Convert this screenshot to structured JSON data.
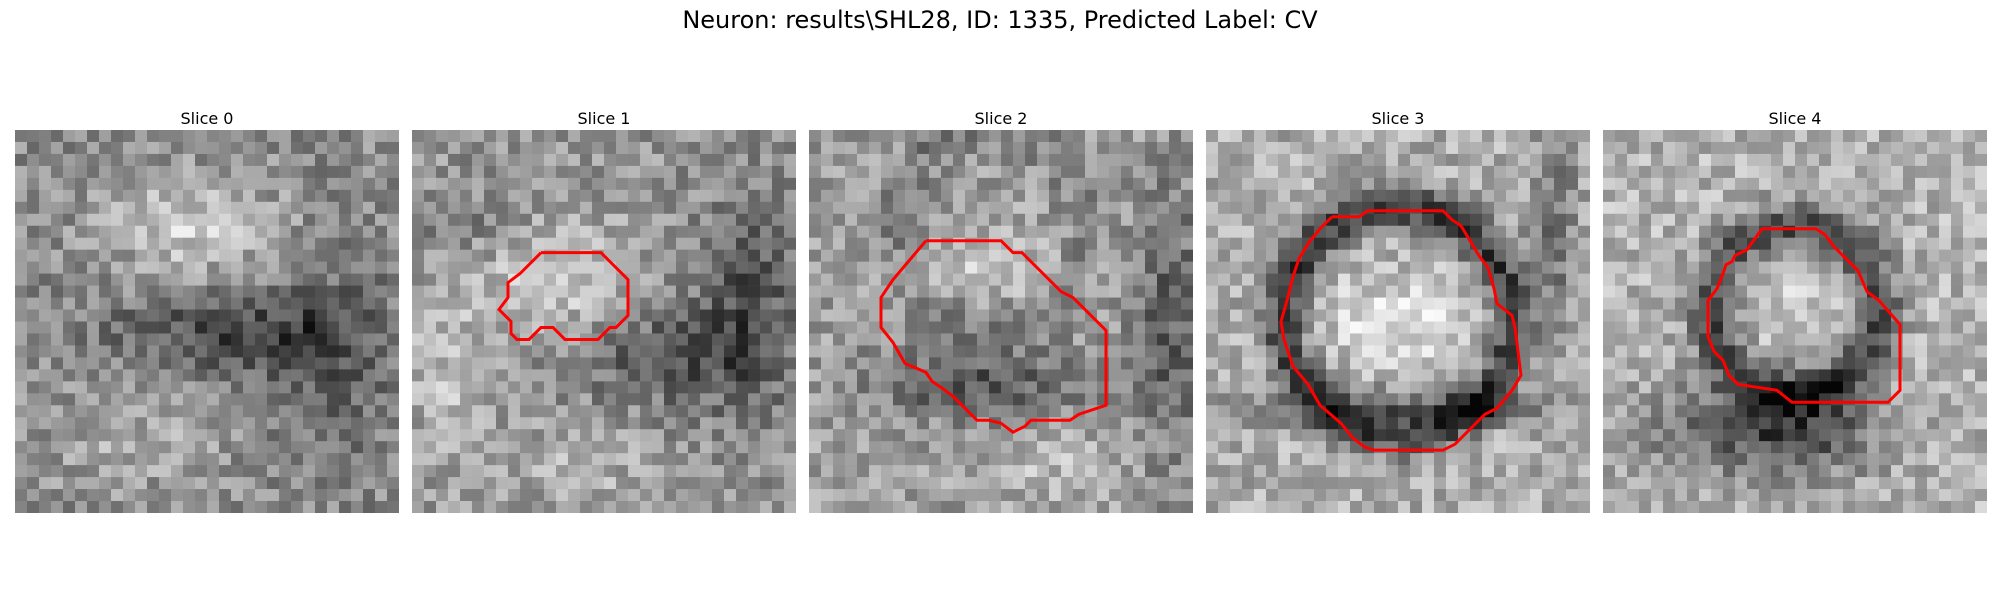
{
  "figure": {
    "title": "Neuron: results\\SHL28, ID: 1335, Predicted Label: CV"
  },
  "slices": [
    {
      "title": "Slice 0",
      "has_contour": false,
      "contour_color": "#ff0000",
      "description": "noisy grayscale microscopy patch, bright blob upper-center, dark band across middle-right"
    },
    {
      "title": "Slice 1",
      "has_contour": true,
      "contour_color": "#ff0000",
      "description": "bright blob center with red outline around small vesicle"
    },
    {
      "title": "Slice 2",
      "has_contour": true,
      "contour_color": "#ff0000",
      "description": "red octagonal outline around gray region with dark lower band"
    },
    {
      "title": "Slice 3",
      "has_contour": true,
      "contour_color": "#ff0000",
      "description": "dark ring around bright center, outlined in red"
    },
    {
      "title": "Slice 4",
      "has_contour": true,
      "contour_color": "#ff0000",
      "description": "dark ring structure outlined in red, dark blob below"
    }
  ]
}
